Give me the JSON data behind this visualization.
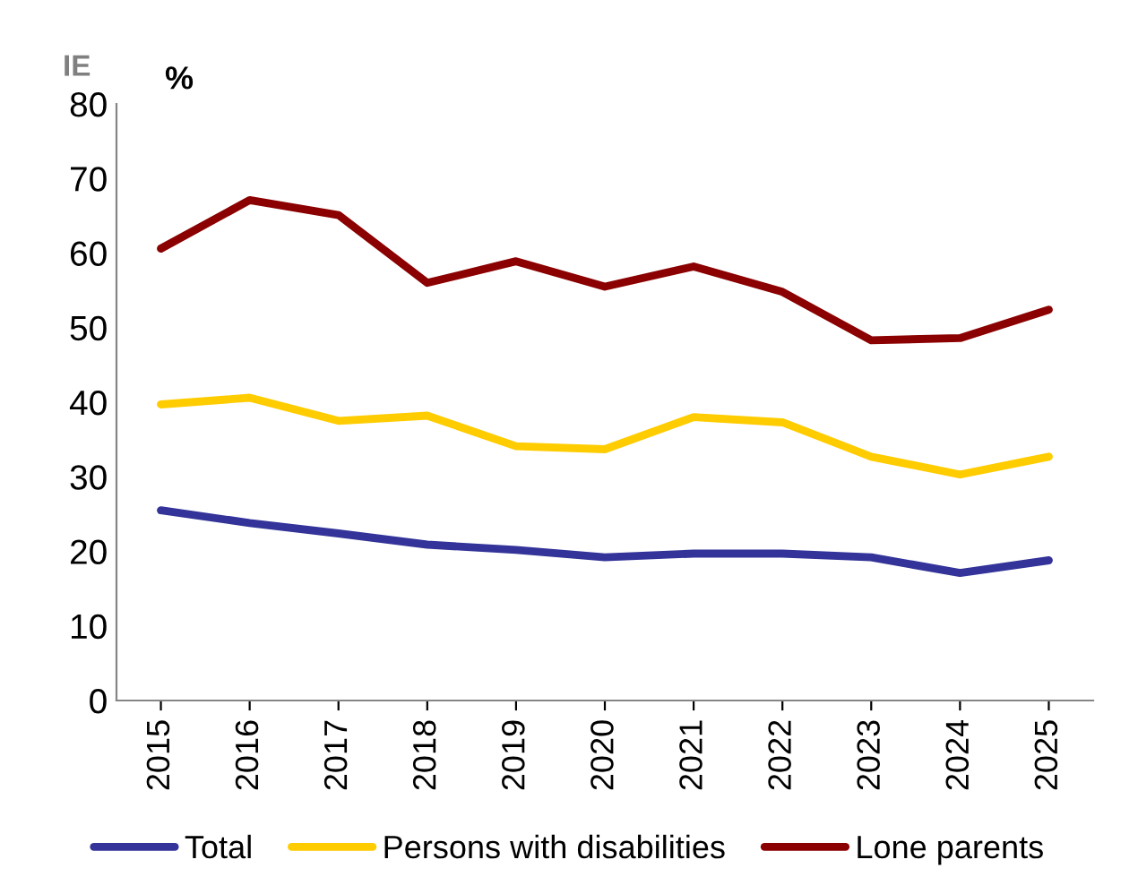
{
  "chart_data": {
    "type": "line",
    "ylabel": "%",
    "annotations": [
      "IE"
    ],
    "categories": [
      "2015",
      "2016",
      "2017",
      "2018",
      "2019",
      "2020",
      "2021",
      "2022",
      "2023",
      "2024",
      "2025"
    ],
    "series": [
      {
        "name": "Total",
        "color": "#333399",
        "values": [
          25.5,
          23.8,
          22.4,
          20.9,
          20.2,
          19.2,
          19.7,
          19.7,
          19.2,
          17.1,
          18.8
        ]
      },
      {
        "name": "Persons with disabilities",
        "color": "#ffcc00",
        "values": [
          39.7,
          40.6,
          37.5,
          38.2,
          34.1,
          33.7,
          38.0,
          37.3,
          32.7,
          30.3,
          32.7
        ]
      },
      {
        "name": "Lone parents",
        "color": "#8b0000",
        "values": [
          60.6,
          67.1,
          65.1,
          56.0,
          58.9,
          55.5,
          58.2,
          54.8,
          48.3,
          48.6,
          52.4
        ]
      }
    ],
    "ylim": [
      0,
      80
    ],
    "yticks": [
      0,
      10,
      20,
      30,
      40,
      50,
      60,
      70,
      80
    ],
    "grid": false,
    "legend": "bottom",
    "marker": "none",
    "line_style": "solid"
  }
}
